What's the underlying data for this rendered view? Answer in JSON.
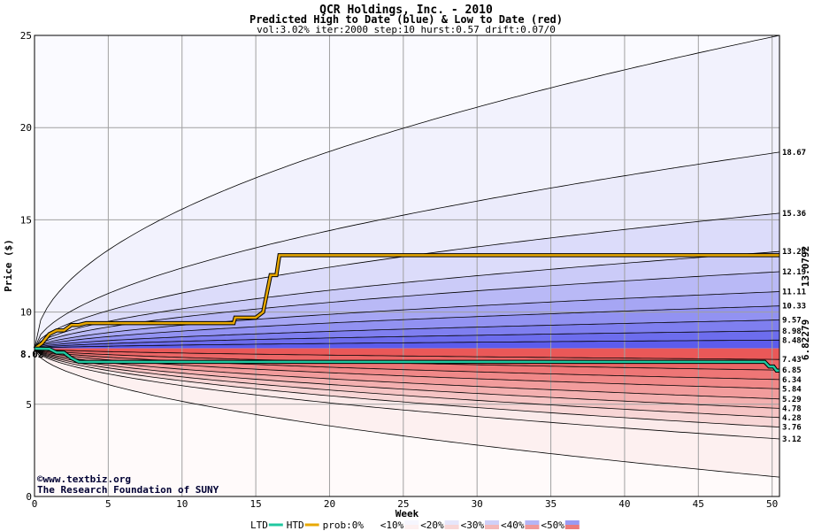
{
  "chart_data": {
    "type": "area",
    "title": "QCR Holdings, Inc. - 2010",
    "subtitle": "Predicted High to Date (blue) &  Low to Date (red)",
    "params": "vol:3.02% iter:2000 step:10 hurst:0.57 drift:0.07/0",
    "xlabel": "Week",
    "ylabel": "Price ($)",
    "xlim": [
      0,
      50.5
    ],
    "ylim": [
      0,
      25
    ],
    "x_ticks": [
      0,
      5,
      10,
      15,
      20,
      25,
      30,
      35,
      40,
      45,
      50
    ],
    "y_ticks": [
      0,
      5,
      10,
      15,
      20,
      25
    ],
    "grid": true,
    "start_price": 8.02,
    "start_label": "8.02",
    "high_quantiles": [
      {
        "end": 25.0,
        "shape": 0.5
      },
      {
        "end": 18.67,
        "label": "18.67"
      },
      {
        "end": 15.36,
        "label": "15.36"
      },
      {
        "end": 13.28,
        "label": "13.28"
      },
      {
        "end": 12.19,
        "label": "12.19"
      },
      {
        "end": 11.11,
        "label": "11.11"
      },
      {
        "end": 10.33,
        "label": "10.33"
      },
      {
        "end": 9.57,
        "label": "9.57"
      },
      {
        "end": 8.98,
        "label": "8.98"
      },
      {
        "end": 8.48,
        "label": "8.48"
      }
    ],
    "low_quantiles": [
      {
        "end": 7.43,
        "label": "7.43"
      },
      {
        "end": 6.85,
        "label": "6.85"
      },
      {
        "end": 6.34,
        "label": "6.34"
      },
      {
        "end": 5.84,
        "label": "5.84"
      },
      {
        "end": 5.29,
        "label": "5.29"
      },
      {
        "end": 4.78,
        "label": "4.78"
      },
      {
        "end": 4.28,
        "label": "4.28"
      },
      {
        "end": 3.76,
        "label": "3.76"
      },
      {
        "end": 3.12,
        "label": "3.12"
      },
      {
        "end": 1.05
      }
    ],
    "series": [
      {
        "name": "HTD",
        "color": "#e8a800",
        "x": [
          0,
          0.5,
          1,
          1.5,
          2,
          2.5,
          3,
          3.5,
          4,
          13.5,
          13.6,
          15,
          15.5,
          15.8,
          16,
          16.4,
          16.6,
          50.5
        ],
        "y": [
          8.02,
          8.3,
          8.8,
          9.0,
          9.0,
          9.3,
          9.3,
          9.4,
          9.4,
          9.4,
          9.7,
          9.7,
          10.0,
          11.2,
          12.0,
          12.0,
          13.0792,
          13.0792
        ]
      },
      {
        "name": "LTD",
        "color": "#20c8a0",
        "x": [
          0,
          1,
          1.5,
          2,
          2.5,
          3,
          49.5,
          49.8,
          50.1,
          50.3,
          50.5
        ],
        "y": [
          8.02,
          8.0,
          7.8,
          7.8,
          7.5,
          7.3,
          7.3,
          7.05,
          7.05,
          6.82279,
          6.82279
        ]
      }
    ],
    "end_values": {
      "high": "13.0792",
      "low": "6.82279"
    },
    "legend": [
      "LTD",
      "HTD",
      "prob:0%",
      "<10%",
      "<20%",
      "<30%",
      "<40%",
      "<50%"
    ],
    "legend_position": "bottom-center",
    "colors": {
      "high_bands": [
        "#ebebfb",
        "#dcdcfa",
        "#cbcbf8",
        "#b9b9f6",
        "#a6a6f4",
        "#9292f2",
        "#7f7ff0",
        "#6d6dee",
        "#5c5ced"
      ],
      "low_bands": [
        "#fbeaea",
        "#f8d6d6",
        "#f6c4c4",
        "#f4b0b0",
        "#f29c9c",
        "#f08888",
        "#ee7676",
        "#ec6666",
        "#ea5858"
      ],
      "outer_high": "#f2f2fd",
      "outer_low": "#fdf0f0",
      "ltd": "#20c8a0",
      "htd": "#e8a800",
      "high_label": "#8b6d00",
      "low_label": "#008b6b"
    }
  },
  "credit": {
    "line1": "©www.textbiz.org",
    "line2": "The Research Foundation of SUNY"
  }
}
